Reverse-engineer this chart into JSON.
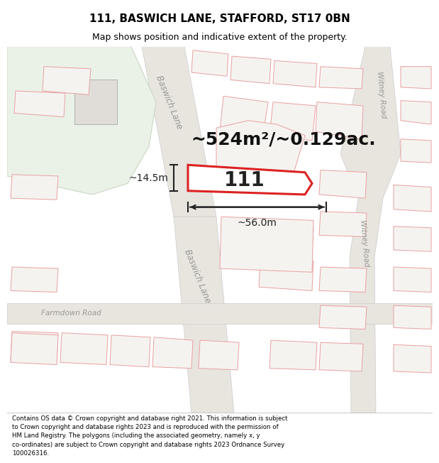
{
  "title": "111, BASWICH LANE, STAFFORD, ST17 0BN",
  "subtitle": "Map shows position and indicative extent of the property.",
  "footer_line1": "Contains OS data © Crown copyright and database right 2021. This information is subject",
  "footer_line2": "to Crown copyright and database rights 2023 and is reproduced with the permission of",
  "footer_line3": "HM Land Registry. The polygons (including the associated geometry, namely x, y",
  "footer_line4": "co-ordinates) are subject to Crown copyright and database rights 2023 Ordnance Survey",
  "footer_line5": "100026316.",
  "map_bg": "#f7f6f2",
  "road_fill": "#e8e5df",
  "road_ec": "#cccccc",
  "plot_fill": "#e8e5e0",
  "plot_ec": "#e8a0a0",
  "green_fill": "#eaf2e8",
  "green_ec": "#c8d8c0",
  "prop_fill": "#ffffff",
  "prop_ec": "#dd2222",
  "area_label": "~524m²/~0.129ac.",
  "property_label": "111",
  "dim_width": "~56.0m",
  "dim_height": "~14.5m",
  "road_label_upper": "Baswich Lane",
  "road_label_lower": "Baswich Lane",
  "road_label_witney_top": "Witney Road",
  "road_label_witney_bot": "Witney Road",
  "road_label_farm": "Farmdown Road"
}
